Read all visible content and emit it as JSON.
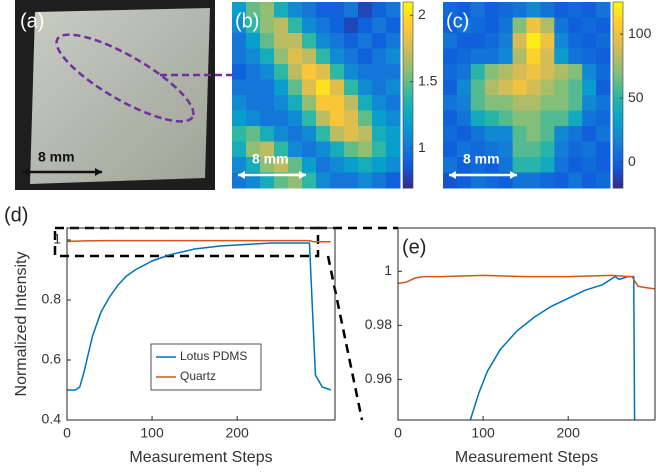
{
  "photo": {
    "label": "(a)",
    "scale": "8 mm"
  },
  "chart_data": [
    {
      "type": "heatmap",
      "panel_label": "(b)",
      "scale_label": "8 mm",
      "z": [
        [
          1.2,
          1.5,
          1.6,
          1.3,
          1.1,
          1.0,
          0.9,
          0.9,
          1.0,
          0.8,
          0.9,
          1.0
        ],
        [
          1.1,
          1.4,
          1.6,
          1.7,
          1.4,
          1.1,
          1.0,
          0.9,
          0.8,
          0.9,
          1.0,
          0.9
        ],
        [
          1.0,
          1.2,
          1.5,
          1.7,
          1.7,
          1.4,
          1.1,
          1.0,
          0.9,
          1.0,
          0.9,
          1.0
        ],
        [
          1.0,
          1.1,
          1.3,
          1.6,
          1.8,
          1.7,
          1.4,
          1.1,
          1.0,
          0.9,
          1.0,
          1.1
        ],
        [
          0.9,
          1.0,
          1.1,
          1.4,
          1.7,
          1.9,
          1.8,
          1.4,
          1.1,
          1.0,
          1.0,
          1.0
        ],
        [
          1.0,
          1.0,
          1.0,
          1.2,
          1.5,
          1.8,
          2.0,
          1.8,
          1.4,
          1.1,
          1.0,
          1.1
        ],
        [
          1.1,
          1.0,
          1.0,
          1.1,
          1.3,
          1.6,
          1.9,
          1.9,
          1.7,
          1.3,
          1.1,
          1.0
        ],
        [
          1.2,
          1.1,
          1.0,
          1.0,
          1.1,
          1.4,
          1.7,
          1.9,
          1.8,
          1.5,
          1.2,
          1.1
        ],
        [
          1.4,
          1.5,
          1.3,
          1.1,
          1.0,
          1.1,
          1.4,
          1.7,
          1.8,
          1.7,
          1.3,
          1.2
        ],
        [
          1.3,
          1.6,
          1.7,
          1.4,
          1.1,
          1.0,
          1.1,
          1.3,
          1.5,
          1.6,
          1.4,
          1.2
        ],
        [
          1.1,
          1.3,
          1.6,
          1.7,
          1.5,
          1.2,
          1.0,
          1.1,
          1.2,
          1.3,
          1.2,
          1.1
        ],
        [
          1.0,
          1.1,
          1.3,
          1.5,
          1.6,
          1.4,
          1.1,
          1.0,
          1.0,
          1.1,
          1.0,
          0.9
        ]
      ],
      "zlim": [
        0.7,
        2.1
      ],
      "zticks": [
        1,
        1.5,
        2
      ],
      "colormap": "parula"
    },
    {
      "type": "heatmap",
      "panel_label": "(c)",
      "scale_label": "8 mm",
      "z": [
        [
          5,
          0,
          10,
          0,
          5,
          10,
          20,
          10,
          0,
          5,
          0,
          10
        ],
        [
          0,
          10,
          5,
          0,
          10,
          70,
          100,
          80,
          10,
          0,
          5,
          0
        ],
        [
          10,
          0,
          0,
          5,
          15,
          90,
          120,
          100,
          20,
          5,
          0,
          5
        ],
        [
          0,
          5,
          10,
          10,
          20,
          80,
          110,
          90,
          30,
          10,
          5,
          0
        ],
        [
          5,
          10,
          50,
          70,
          80,
          90,
          100,
          90,
          80,
          70,
          20,
          5
        ],
        [
          0,
          20,
          60,
          80,
          90,
          100,
          90,
          80,
          70,
          60,
          30,
          0
        ],
        [
          10,
          15,
          60,
          70,
          70,
          80,
          80,
          70,
          70,
          60,
          20,
          10
        ],
        [
          0,
          10,
          40,
          50,
          60,
          70,
          70,
          60,
          60,
          40,
          10,
          5
        ],
        [
          5,
          0,
          10,
          20,
          20,
          60,
          70,
          60,
          20,
          10,
          0,
          10
        ],
        [
          0,
          10,
          5,
          10,
          15,
          60,
          60,
          50,
          15,
          5,
          10,
          0
        ],
        [
          10,
          0,
          5,
          0,
          10,
          50,
          50,
          40,
          10,
          0,
          5,
          0
        ],
        [
          -5,
          0,
          10,
          5,
          0,
          10,
          10,
          5,
          0,
          10,
          0,
          5
        ]
      ],
      "zlim": [
        -20,
        125
      ],
      "zticks": [
        0,
        50,
        100
      ],
      "colormap": "parula"
    },
    {
      "type": "line",
      "panel_label": "(d)",
      "x_label": "Measurement Steps",
      "y_label": "Normalized Intensity",
      "xlim": [
        0,
        315
      ],
      "xticks": [
        0,
        100,
        200
      ],
      "ylim": [
        0.4,
        1.04
      ],
      "yticks": [
        0.4,
        0.6,
        0.8,
        1
      ],
      "legend": "lower center",
      "series": [
        {
          "name": "Lotus PDMS",
          "color": "#0072bd",
          "x": [
            0,
            5,
            10,
            15,
            20,
            25,
            30,
            40,
            50,
            60,
            70,
            80,
            100,
            120,
            150,
            180,
            210,
            240,
            270,
            285,
            288,
            292,
            300,
            310
          ],
          "values": [
            0.5,
            0.5,
            0.5,
            0.51,
            0.56,
            0.62,
            0.68,
            0.76,
            0.81,
            0.85,
            0.88,
            0.9,
            0.93,
            0.95,
            0.97,
            0.98,
            0.985,
            0.99,
            0.99,
            0.99,
            0.8,
            0.55,
            0.51,
            0.5
          ]
        },
        {
          "name": "Quartz",
          "color": "#d95319",
          "x": [
            0,
            20,
            50,
            100,
            150,
            200,
            250,
            285,
            290,
            310
          ],
          "values": [
            0.995,
            0.997,
            0.998,
            0.998,
            0.998,
            0.998,
            0.998,
            0.998,
            0.994,
            0.994
          ]
        }
      ]
    },
    {
      "type": "line",
      "panel_label": "(e)",
      "x_label": "Measurement Steps",
      "xlim": [
        0,
        302
      ],
      "xticks": [
        0,
        100,
        200
      ],
      "ylim": [
        0.945,
        1.016
      ],
      "yticks": [
        0.96,
        0.98,
        1
      ],
      "series": [
        {
          "name": "Lotus PDMS",
          "color": "#0072bd",
          "x": [
            85,
            95,
            105,
            120,
            140,
            160,
            180,
            200,
            220,
            240,
            250,
            255,
            260,
            270,
            277,
            278
          ],
          "values": [
            0.945,
            0.955,
            0.963,
            0.971,
            0.978,
            0.983,
            0.987,
            0.99,
            0.993,
            0.995,
            0.997,
            0.998,
            0.997,
            0.998,
            0.998,
            0.945
          ]
        },
        {
          "name": "Quartz",
          "color": "#d95319",
          "x": [
            0,
            10,
            20,
            30,
            50,
            100,
            150,
            200,
            250,
            275,
            282,
            290,
            302
          ],
          "values": [
            0.9955,
            0.996,
            0.9975,
            0.998,
            0.998,
            0.9985,
            0.998,
            0.998,
            0.9985,
            0.998,
            0.9945,
            0.994,
            0.9935
          ]
        }
      ]
    }
  ]
}
